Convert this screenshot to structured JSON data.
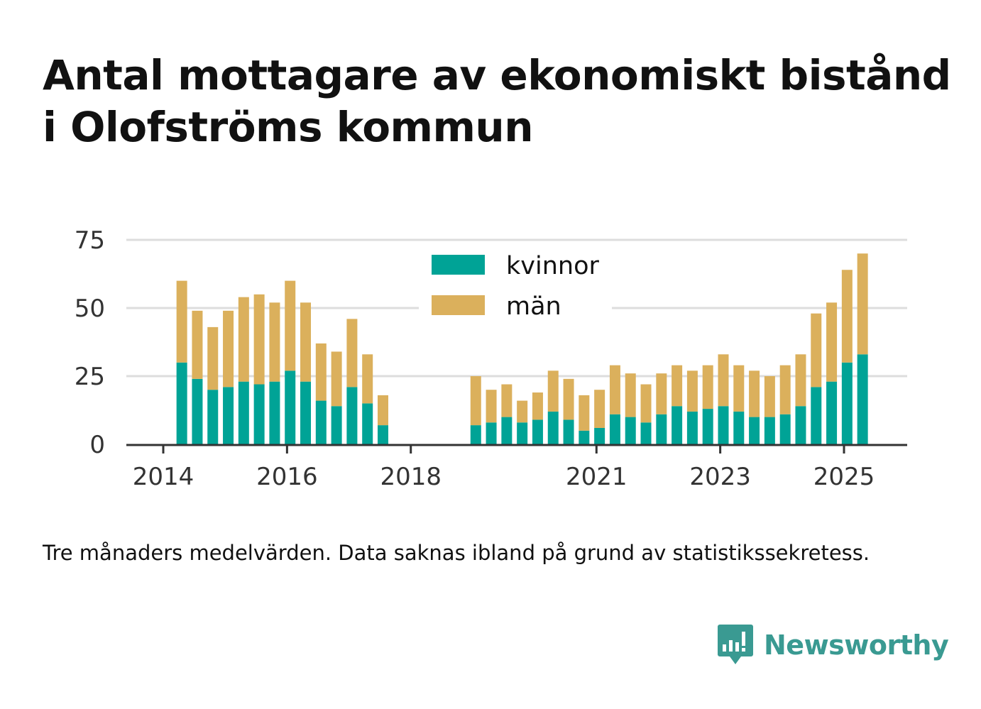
{
  "title": "Antal mottagare av ekonomiskt bistånd i Olofströms kommun",
  "subtitle": "Tre månaders medelvärden. Data saknas ibland på grund av statistikssekretess.",
  "brand": {
    "name": "Newsworthy",
    "logo_icon": "newsworthy-bar-chart-icon",
    "color": "#3a9a92"
  },
  "colors": {
    "kvinnor": "#00a396",
    "man": "#dbb05c",
    "grid": "#dddddd",
    "axis": "#333333"
  },
  "chart_data": {
    "type": "bar",
    "stacked": true,
    "x_ticks": [
      "2014",
      "2016",
      "2018",
      "2021",
      "2023",
      "2025"
    ],
    "y_ticks": [
      "0",
      "25",
      "50",
      "75"
    ],
    "ylim": [
      0,
      75
    ],
    "grid": true,
    "legend_position": "top-center",
    "x": [
      2014.3,
      2014.55,
      2014.8,
      2015.05,
      2015.3,
      2015.55,
      2015.8,
      2016.05,
      2016.3,
      2016.55,
      2016.8,
      2017.05,
      2017.3,
      2017.55,
      2019.05,
      2019.3,
      2019.55,
      2019.8,
      2020.05,
      2020.3,
      2020.55,
      2020.8,
      2021.05,
      2021.3,
      2021.55,
      2021.8,
      2022.05,
      2022.3,
      2022.55,
      2022.8,
      2023.05,
      2023.3,
      2023.55,
      2023.8,
      2024.05,
      2024.3,
      2024.55,
      2024.8,
      2025.05,
      2025.3
    ],
    "series": [
      {
        "name": "kvinnor",
        "values": [
          30,
          24,
          20,
          21,
          23,
          22,
          23,
          27,
          23,
          16,
          14,
          21,
          15,
          7,
          7,
          8,
          10,
          8,
          9,
          12,
          9,
          5,
          6,
          11,
          10,
          8,
          11,
          14,
          12,
          13,
          14,
          12,
          10,
          10,
          11,
          14,
          21,
          23,
          30,
          33
        ]
      },
      {
        "name": "män",
        "values": [
          30,
          25,
          23,
          28,
          31,
          33,
          29,
          33,
          29,
          21,
          20,
          25,
          18,
          11,
          18,
          12,
          12,
          8,
          10,
          15,
          15,
          13,
          14,
          18,
          16,
          14,
          15,
          15,
          15,
          16,
          19,
          17,
          17,
          15,
          18,
          19,
          27,
          29,
          34,
          37
        ]
      }
    ]
  }
}
